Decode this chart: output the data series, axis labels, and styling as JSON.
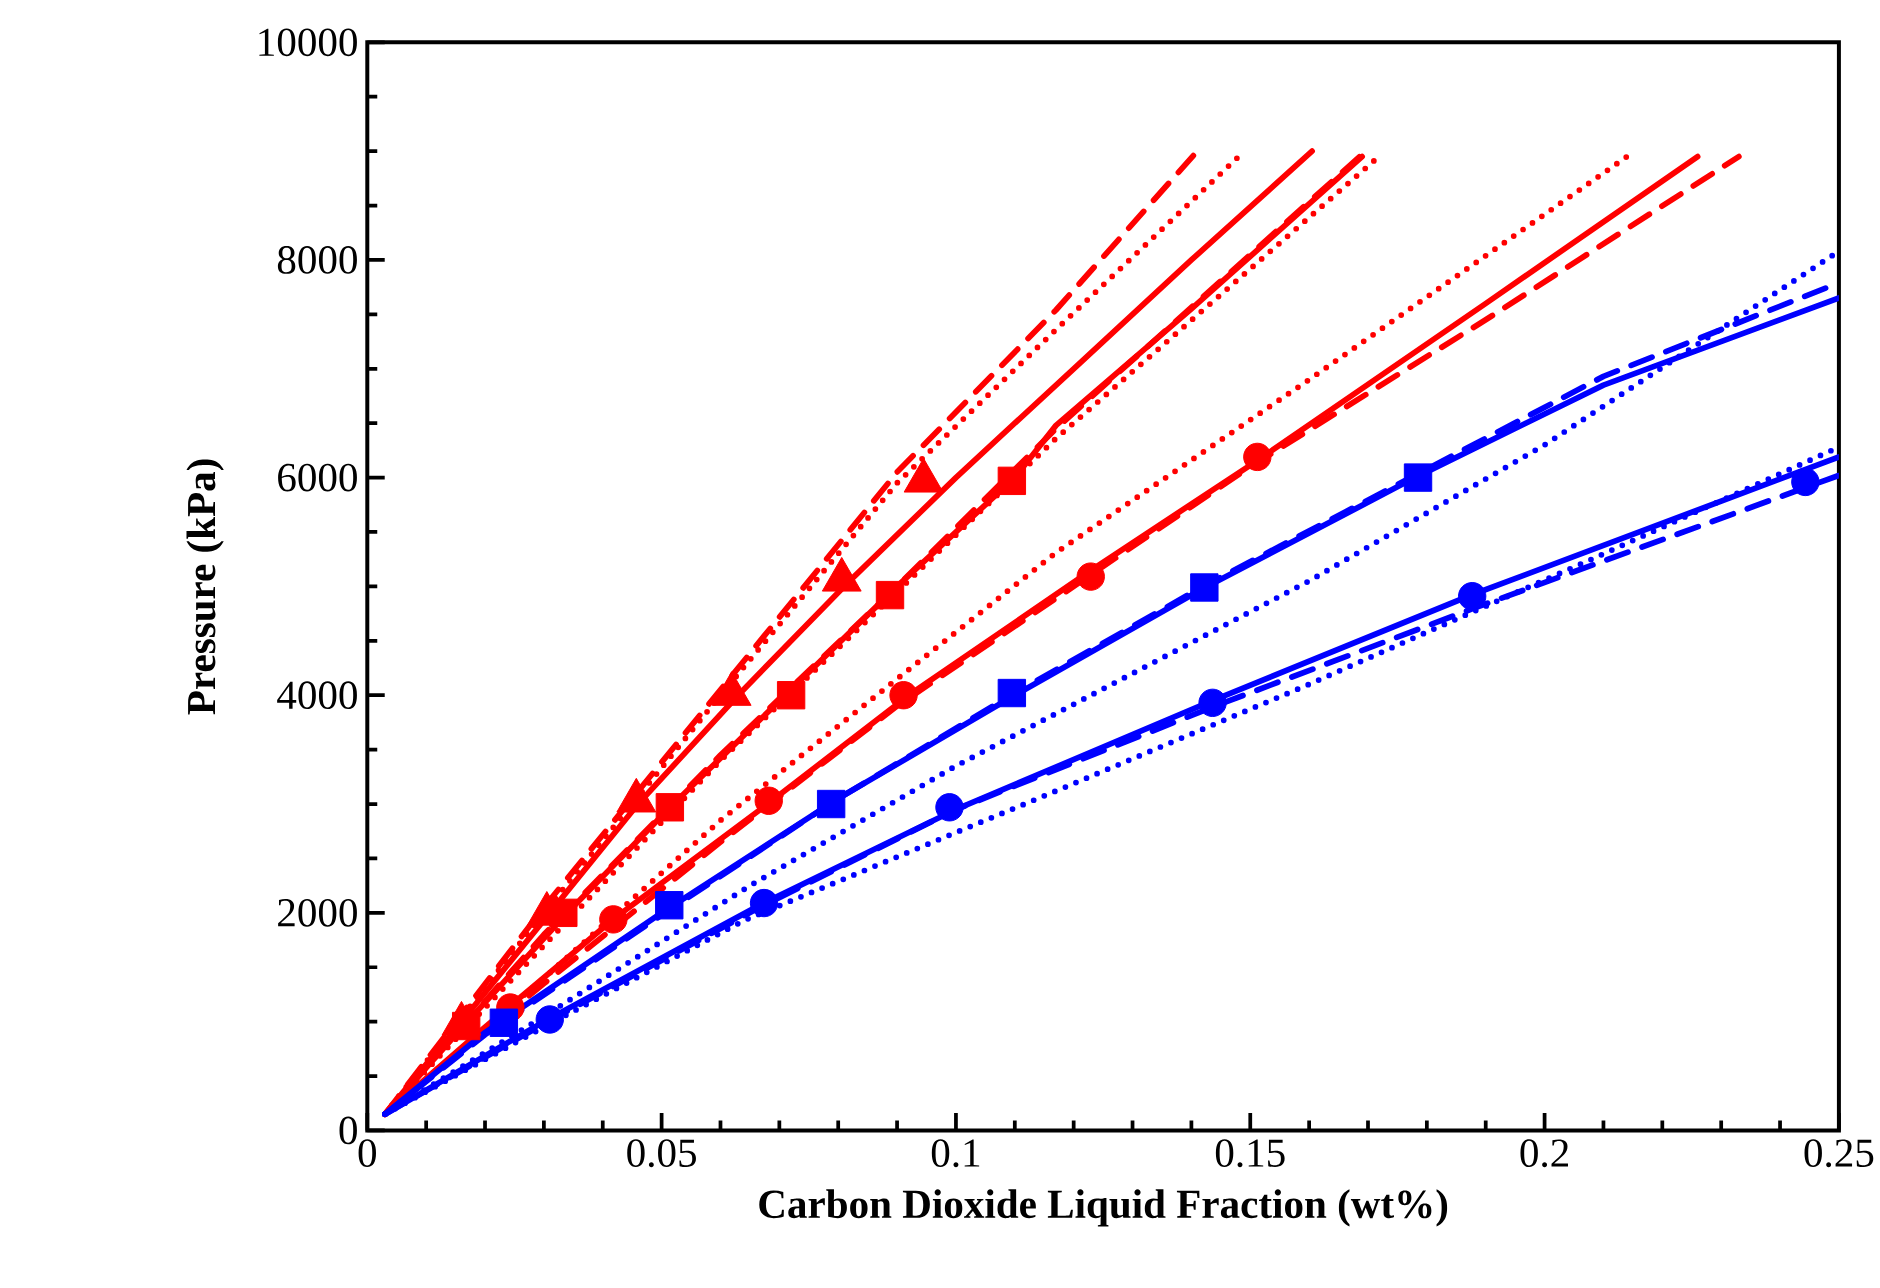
{
  "chart_data": {
    "type": "line",
    "xlabel": "Carbon Dioxide Liquid Fraction (wt%)",
    "ylabel": "Pressure (kPa)",
    "xlim": [
      0,
      0.25
    ],
    "ylim": [
      0,
      10000
    ],
    "xticks": [
      0,
      0.05,
      0.1,
      0.15,
      0.2,
      0.25
    ],
    "yticks": [
      0,
      2000,
      4000,
      6000,
      8000,
      10000
    ],
    "series": [
      {
        "line_style": "solid",
        "color": "#ff0000",
        "x": [
          0.003,
          0.016,
          0.031,
          0.046,
          0.063,
          0.081,
          0.1,
          0.12,
          0.14,
          0.1605
        ],
        "values": [
          150,
          1000,
          2000,
          3000,
          4000,
          5000,
          6000,
          7000,
          8000,
          9000
        ]
      },
      {
        "line_style": "dashed",
        "color": "#ff0000",
        "x": [
          0.003,
          0.03,
          0.06,
          0.09,
          0.117,
          0.141
        ],
        "values": [
          150,
          2050,
          4050,
          6050,
          7540,
          9000
        ]
      },
      {
        "line_style": "dotted",
        "color": "#ff0000",
        "x": [
          0.003,
          0.03,
          0.06,
          0.09,
          0.117,
          0.149
        ],
        "values": [
          150,
          2000,
          4000,
          5950,
          7360,
          9000
        ]
      },
      {
        "line_style": "solid",
        "color": "#ff0000",
        "x": [
          0.003,
          0.017,
          0.034,
          0.052,
          0.071,
          0.09,
          0.11,
          0.117,
          0.14,
          0.169
        ],
        "values": [
          150,
          1000,
          2000,
          3000,
          4000,
          5000,
          6000,
          6480,
          7550,
          8950
        ]
      },
      {
        "line_style": "dashed",
        "color": "#ff0000",
        "x": [
          0.003,
          0.03,
          0.06,
          0.09,
          0.117,
          0.169
        ],
        "values": [
          150,
          1800,
          3450,
          5000,
          6450,
          8970
        ]
      },
      {
        "line_style": "dotted",
        "color": "#ff0000",
        "x": [
          0.003,
          0.03,
          0.06,
          0.09,
          0.117,
          0.171
        ],
        "values": [
          150,
          1700,
          3400,
          4950,
          6360,
          8910
        ]
      },
      {
        "line_style": "solid",
        "color": "#ff0000",
        "x": [
          0.003,
          0.02,
          0.042,
          0.068,
          0.092,
          0.123,
          0.151,
          0.19,
          0.226
        ],
        "values": [
          150,
          950,
          1950,
          3000,
          4000,
          5150,
          6150,
          7600,
          8950
        ]
      },
      {
        "line_style": "dashed",
        "color": "#ff0000",
        "x": [
          0.003,
          0.03,
          0.06,
          0.09,
          0.12,
          0.15,
          0.19,
          0.233
        ],
        "values": [
          150,
          1350,
          2650,
          3900,
          5000,
          6100,
          7450,
          8950
        ]
      },
      {
        "line_style": "dotted",
        "color": "#ff0000",
        "x": [
          0.003,
          0.03,
          0.06,
          0.09,
          0.117,
          0.16,
          0.214
        ],
        "values": [
          150,
          1400,
          2850,
          4150,
          5310,
          6900,
          8950
        ]
      },
      {
        "line_style": "solid",
        "color": "#0000ff",
        "x": [
          0.003,
          0.02,
          0.05,
          0.08,
          0.11,
          0.142,
          0.178,
          0.21,
          0.25
        ],
        "values": [
          150,
          900,
          2000,
          3050,
          4000,
          4980,
          6000,
          6850,
          7650
        ]
      },
      {
        "line_style": "dashed",
        "color": "#0000ff",
        "x": [
          0.003,
          0.02,
          0.05,
          0.08,
          0.11,
          0.142,
          0.178,
          0.21,
          0.25
        ],
        "values": [
          150,
          880,
          1980,
          3050,
          4020,
          5000,
          6020,
          6930,
          7790
        ]
      },
      {
        "line_style": "dotted",
        "color": "#0000ff",
        "x": [
          0.003,
          0.03,
          0.065,
          0.1,
          0.13,
          0.16,
          0.2,
          0.25
        ],
        "values": [
          150,
          1050,
          2250,
          3350,
          4200,
          5050,
          6300,
          8080
        ]
      },
      {
        "line_style": "solid",
        "color": "#0000ff",
        "x": [
          0.003,
          0.03,
          0.067,
          0.1,
          0.144,
          0.188,
          0.25
        ],
        "values": [
          150,
          1000,
          2080,
          2950,
          3960,
          4930,
          6190
        ]
      },
      {
        "line_style": "dashed",
        "color": "#0000ff",
        "x": [
          0.003,
          0.03,
          0.067,
          0.1,
          0.144,
          0.188,
          0.25
        ],
        "values": [
          150,
          980,
          2060,
          2950,
          3900,
          4800,
          6020
        ]
      },
      {
        "line_style": "dotted",
        "color": "#0000ff",
        "x": [
          0.003,
          0.03,
          0.064,
          0.117,
          0.16,
          0.208,
          0.25
        ],
        "values": [
          150,
          950,
          1930,
          3120,
          4100,
          5250,
          6280
        ]
      },
      {
        "type": "scatter",
        "marker": "triangle",
        "color": "#ff0000",
        "x": [
          0.016,
          0.0305,
          0.0457,
          0.0619,
          0.0806,
          0.0945
        ],
        "values": [
          980,
          1990,
          3030,
          4010,
          5060,
          5970
        ]
      },
      {
        "type": "scatter",
        "marker": "square",
        "color": "#ff0000",
        "x": [
          0.0168,
          0.0333,
          0.0514,
          0.072,
          0.0888,
          0.1095
        ],
        "values": [
          960,
          2000,
          2970,
          4000,
          4920,
          5970
        ]
      },
      {
        "type": "scatter",
        "marker": "circle",
        "color": "#ff0000",
        "x": [
          0.0243,
          0.0418,
          0.0682,
          0.0911,
          0.1229,
          0.1512
        ],
        "values": [
          1130,
          1940,
          3030,
          4000,
          5090,
          6190
        ]
      },
      {
        "type": "scatter",
        "marker": "square",
        "color": "#0000ff",
        "x": [
          0.0232,
          0.0513,
          0.0788,
          0.1095,
          0.1422,
          0.1785
        ],
        "values": [
          990,
          2070,
          3000,
          4020,
          4990,
          6000
        ]
      },
      {
        "type": "scatter",
        "marker": "circle",
        "color": "#0000ff",
        "x": [
          0.031,
          0.0674,
          0.0989,
          0.1436,
          0.1877,
          0.2443
        ],
        "values": [
          1020,
          2090,
          2970,
          3930,
          4910,
          5960
        ]
      }
    ]
  }
}
